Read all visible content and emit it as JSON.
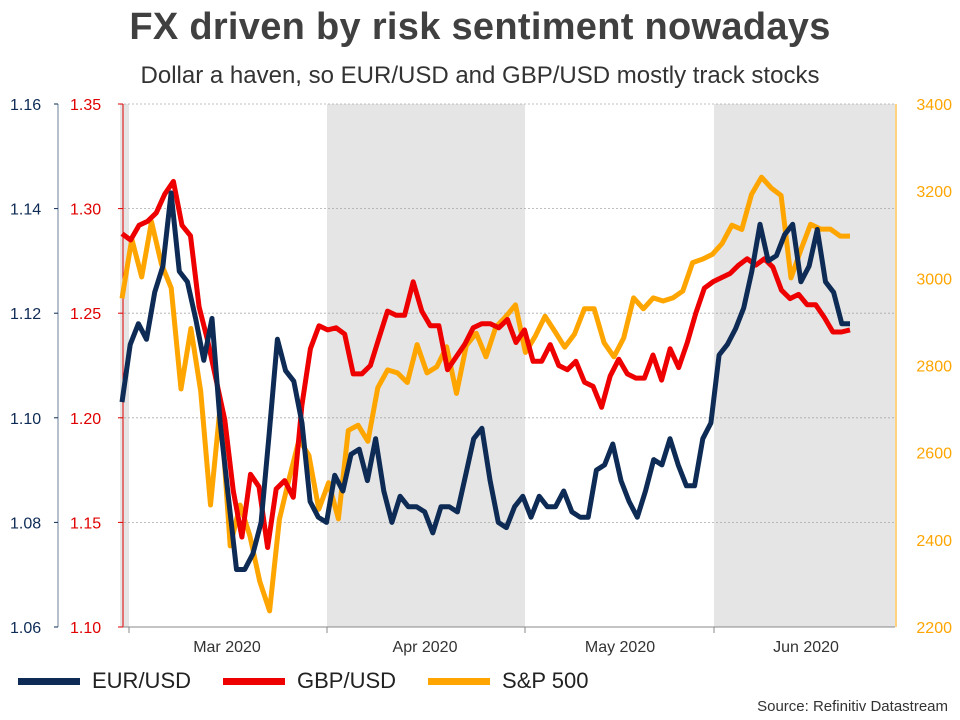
{
  "title": "FX driven by risk sentiment nowadays",
  "subtitle": "Dollar a haven, so EUR/USD and GBP/USD mostly track stocks",
  "source": "Source: Refinitiv Datastream",
  "colors": {
    "eurusd": "#0d2b55",
    "gbpusd": "#ee0000",
    "spx": "#ffa500",
    "shade": "#e5e5e5",
    "grid": "#aaaaaa"
  },
  "chart_data": {
    "type": "line",
    "title": "FX driven by risk sentiment nowadays",
    "subtitle": "Dollar a haven, so EUR/USD and GBP/USD mostly track stocks",
    "x_labels": [
      "Mar 2020",
      "Apr 2020",
      "May 2020",
      "Jun 2020"
    ],
    "shaded_periods": [
      [
        "start",
        "Feb 2020 end"
      ],
      [
        "Apr 2020",
        "May 2020"
      ],
      [
        "Jun 2020",
        "end"
      ]
    ],
    "grid": true,
    "legend_position": "bottom-left",
    "axes": {
      "eur_left": {
        "min": 1.06,
        "max": 1.16,
        "ticks": [
          "1.06",
          "1.08",
          "1.10",
          "1.12",
          "1.14",
          "1.16"
        ]
      },
      "gbp_left": {
        "min": 1.1,
        "max": 1.35,
        "ticks": [
          "1.10",
          "1.15",
          "1.20",
          "1.25",
          "1.30",
          "1.35"
        ]
      },
      "spx_right": {
        "min": 2200,
        "max": 3400,
        "ticks": [
          "2200",
          "2400",
          "2600",
          "2800",
          "3000",
          "3200",
          "3400"
        ]
      }
    },
    "series": [
      {
        "name": "EUR/USD",
        "axis": "eur_left",
        "values": [
          1.103,
          1.114,
          1.118,
          1.115,
          1.124,
          1.129,
          1.143,
          1.128,
          1.126,
          1.119,
          1.111,
          1.119,
          1.099,
          1.085,
          1.071,
          1.071,
          1.074,
          1.08,
          1.097,
          1.115,
          1.109,
          1.107,
          1.099,
          1.084,
          1.081,
          1.08,
          1.089,
          1.086,
          1.093,
          1.094,
          1.088,
          1.096,
          1.086,
          1.08,
          1.085,
          1.083,
          1.083,
          1.082,
          1.078,
          1.083,
          1.083,
          1.082,
          1.089,
          1.096,
          1.098,
          1.088,
          1.08,
          1.079,
          1.083,
          1.085,
          1.081,
          1.085,
          1.083,
          1.083,
          1.086,
          1.082,
          1.081,
          1.081,
          1.09,
          1.091,
          1.095,
          1.088,
          1.084,
          1.081,
          1.086,
          1.092,
          1.091,
          1.096,
          1.091,
          1.087,
          1.087,
          1.096,
          1.099,
          1.112,
          1.114,
          1.117,
          1.121,
          1.128,
          1.137,
          1.13,
          1.131,
          1.135,
          1.137,
          1.126,
          1.129,
          1.136,
          1.126,
          1.124,
          1.118,
          1.118
        ]
      },
      {
        "name": "GBP/USD",
        "axis": "gbp_left",
        "values": [
          1.288,
          1.285,
          1.292,
          1.294,
          1.298,
          1.307,
          1.313,
          1.292,
          1.287,
          1.253,
          1.237,
          1.218,
          1.199,
          1.165,
          1.143,
          1.173,
          1.167,
          1.138,
          1.166,
          1.17,
          1.162,
          1.206,
          1.233,
          1.244,
          1.242,
          1.243,
          1.24,
          1.221,
          1.221,
          1.225,
          1.238,
          1.251,
          1.249,
          1.249,
          1.265,
          1.251,
          1.244,
          1.244,
          1.223,
          1.229,
          1.235,
          1.243,
          1.245,
          1.245,
          1.243,
          1.247,
          1.236,
          1.242,
          1.227,
          1.227,
          1.235,
          1.225,
          1.223,
          1.227,
          1.217,
          1.215,
          1.205,
          1.22,
          1.228,
          1.221,
          1.219,
          1.219,
          1.23,
          1.218,
          1.233,
          1.224,
          1.236,
          1.25,
          1.262,
          1.265,
          1.267,
          1.269,
          1.273,
          1.276,
          1.273,
          1.276,
          1.272,
          1.261,
          1.257,
          1.259,
          1.254,
          1.254,
          1.248,
          1.241,
          1.241,
          1.242
        ]
      },
      {
        "name": "S&P 500",
        "axis": "spx_right",
        "values": [
          2954,
          3090,
          3003,
          3130,
          3033,
          2978,
          2746,
          2885,
          2741,
          2480,
          2711,
          2386,
          2480,
          2409,
          2305,
          2237,
          2447,
          2541,
          2630,
          2594,
          2470,
          2531,
          2448,
          2651,
          2663,
          2626,
          2749,
          2790,
          2783,
          2761,
          2848,
          2783,
          2797,
          2843,
          2736,
          2846,
          2874,
          2820,
          2888,
          2912,
          2939,
          2830,
          2867,
          2913,
          2878,
          2842,
          2872,
          2930,
          2930,
          2852,
          2820,
          2863,
          2955,
          2930,
          2955,
          2948,
          2955,
          2971,
          3036,
          3044,
          3055,
          3080,
          3122,
          3112,
          3193,
          3232,
          3207,
          3190,
          3001,
          3065,
          3124,
          3113,
          3113,
          3097,
          3097
        ]
      }
    ]
  }
}
